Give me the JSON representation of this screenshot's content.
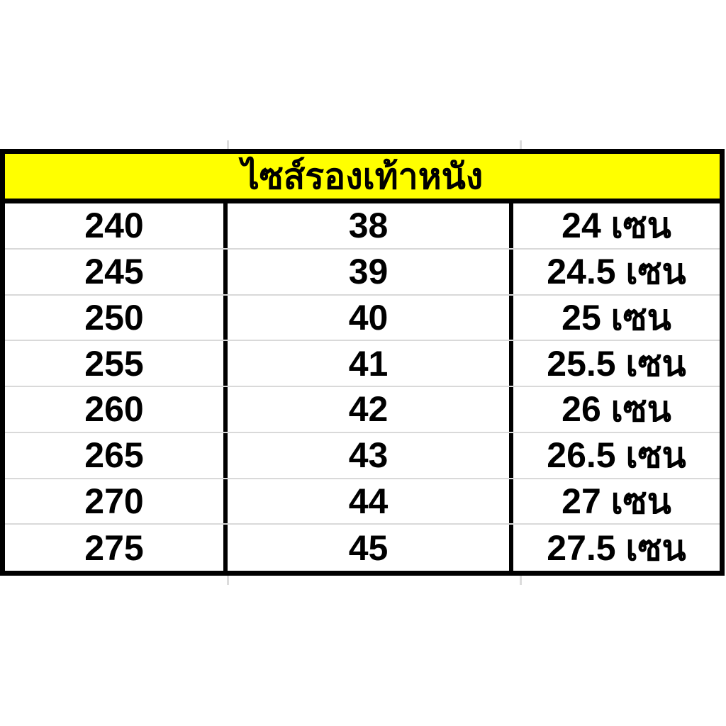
{
  "chart_data": {
    "type": "table",
    "title": "ไซส์รองเท้าหนัง",
    "rows": [
      [
        "240",
        "38",
        "24 เซน"
      ],
      [
        "245",
        "39",
        "24.5 เซน"
      ],
      [
        "250",
        "40",
        "25 เซน"
      ],
      [
        "255",
        "41",
        "25.5 เซน"
      ],
      [
        "260",
        "42",
        "26 เซน"
      ],
      [
        "265",
        "43",
        "26.5 เซน"
      ],
      [
        "270",
        "44",
        "27 เซน"
      ],
      [
        "275",
        "45",
        "27.5 เซน"
      ]
    ],
    "layout": {
      "header_merged": true,
      "column_count": 3,
      "row_count": 8
    }
  },
  "colors": {
    "header_bg": "#FFFF00",
    "border": "#000000",
    "row_divider": "#D9D9D9",
    "text": "#000000",
    "page_bg": "#FFFFFF"
  }
}
